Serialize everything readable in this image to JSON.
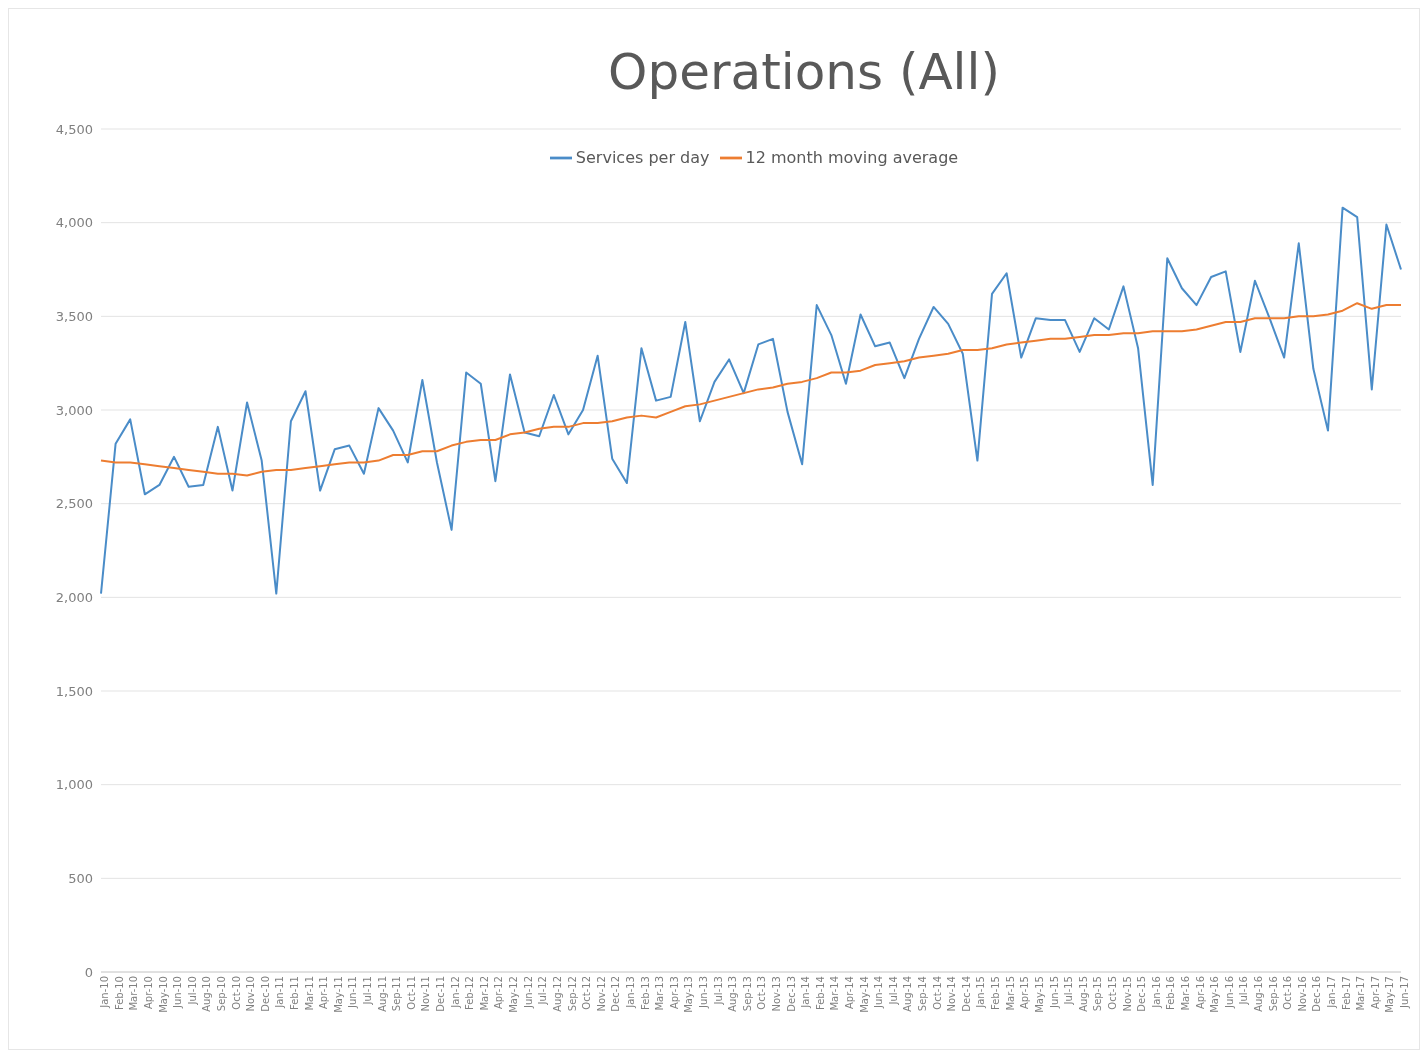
{
  "chart_data": {
    "type": "line",
    "title": "Operations (All)",
    "categories": [
      "Jan-10",
      "Feb-10",
      "Mar-10",
      "Apr-10",
      "May-10",
      "Jun-10",
      "Jul-10",
      "Aug-10",
      "Sep-10",
      "Oct-10",
      "Nov-10",
      "Dec-10",
      "Jan-11",
      "Feb-11",
      "Mar-11",
      "Apr-11",
      "May-11",
      "Jun-11",
      "Jul-11",
      "Aug-11",
      "Sep-11",
      "Oct-11",
      "Nov-11",
      "Dec-11",
      "Jan-12",
      "Feb-12",
      "Mar-12",
      "Apr-12",
      "May-12",
      "Jun-12",
      "Jul-12",
      "Aug-12",
      "Sep-12",
      "Oct-12",
      "Nov-12",
      "Dec-12",
      "Jan-13",
      "Feb-13",
      "Mar-13",
      "Apr-13",
      "May-13",
      "Jun-13",
      "Jul-13",
      "Aug-13",
      "Sep-13",
      "Oct-13",
      "Nov-13",
      "Dec-13",
      "Jan-14",
      "Feb-14",
      "Mar-14",
      "Apr-14",
      "May-14",
      "Jun-14",
      "Jul-14",
      "Aug-14",
      "Sep-14",
      "Oct-14",
      "Nov-14",
      "Dec-14",
      "Jan-15",
      "Feb-15",
      "Mar-15",
      "Apr-15",
      "May-15",
      "Jun-15",
      "Jul-15",
      "Aug-15",
      "Sep-15",
      "Oct-15",
      "Nov-15",
      "Dec-15",
      "Jan-16",
      "Feb-16",
      "Mar-16",
      "Apr-16",
      "May-16",
      "Jun-16",
      "Jul-16",
      "Aug-16",
      "Sep-16",
      "Oct-16",
      "Nov-16",
      "Dec-16",
      "Jan-17",
      "Feb-17",
      "Mar-17",
      "Apr-17",
      "May-17",
      "Jun-17"
    ],
    "series": [
      {
        "name": "Services per day",
        "color": "#4a8cc8",
        "values": [
          2020,
          2820,
          2950,
          2550,
          2600,
          2750,
          2590,
          2600,
          2910,
          2570,
          3040,
          2730,
          2020,
          2940,
          3100,
          2570,
          2790,
          2810,
          2660,
          3010,
          2890,
          2720,
          3160,
          2720,
          2360,
          3200,
          3140,
          2620,
          3190,
          2880,
          2860,
          3080,
          2870,
          3000,
          3290,
          2740,
          2610,
          3330,
          3050,
          3070,
          3470,
          2940,
          3150,
          3270,
          3090,
          3350,
          3380,
          2990,
          2710,
          3560,
          3400,
          3140,
          3510,
          3340,
          3360,
          3170,
          3380,
          3550,
          3460,
          3300,
          2730,
          3620,
          3730,
          3280,
          3490,
          3480,
          3480,
          3310,
          3490,
          3430,
          3660,
          3330,
          2600,
          3810,
          3650,
          3560,
          3710,
          3740,
          3310,
          3690,
          3490,
          3280,
          3890,
          3220,
          2890,
          4080,
          4030,
          3110,
          3990,
          3750
        ]
      },
      {
        "name": "12 month moving average",
        "color": "#ed7d31",
        "values": [
          2730,
          2720,
          2720,
          2710,
          2700,
          2690,
          2680,
          2670,
          2660,
          2660,
          2650,
          2670,
          2680,
          2680,
          2690,
          2700,
          2710,
          2720,
          2720,
          2730,
          2760,
          2760,
          2780,
          2780,
          2810,
          2830,
          2840,
          2840,
          2870,
          2880,
          2900,
          2910,
          2910,
          2930,
          2930,
          2940,
          2960,
          2970,
          2960,
          2990,
          3020,
          3030,
          3050,
          3070,
          3090,
          3110,
          3120,
          3140,
          3150,
          3170,
          3200,
          3200,
          3210,
          3240,
          3250,
          3260,
          3280,
          3290,
          3300,
          3320,
          3320,
          3330,
          3350,
          3360,
          3370,
          3380,
          3380,
          3390,
          3400,
          3400,
          3410,
          3410,
          3420,
          3420,
          3420,
          3430,
          3450,
          3470,
          3470,
          3490,
          3490,
          3490,
          3500,
          3500,
          3510,
          3530,
          3570,
          3540,
          3560,
          3560
        ]
      }
    ],
    "ylim": [
      0,
      4500
    ],
    "yticks": [
      0,
      500,
      {
        "value": 1000,
        "label": "1,000"
      },
      {
        "value": 1500,
        "label": "1,500"
      },
      {
        "value": 2000,
        "label": "2,000"
      },
      {
        "value": 2500,
        "label": "2,500"
      },
      {
        "value": 3000,
        "label": "3,000"
      },
      {
        "value": 3500,
        "label": "3,500"
      },
      {
        "value": 4000,
        "label": "4,000"
      },
      {
        "value": 4500,
        "label": "4,500"
      }
    ],
    "grid": "y",
    "legend": "top",
    "marker": "none",
    "line_style": "solid"
  }
}
